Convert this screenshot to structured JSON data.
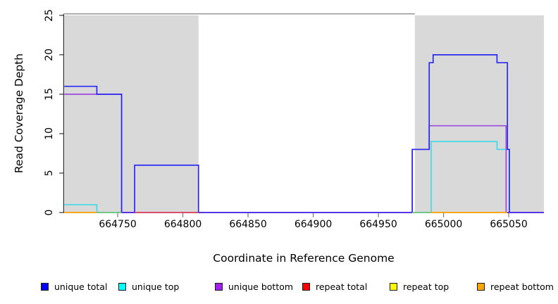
{
  "chart_data": {
    "type": "line",
    "subtype": "step-coverage-plot",
    "title": "",
    "xlabel": "Coordinate in Reference Genome",
    "ylabel": "Read Coverage Depth",
    "xlim": [
      664709,
      665077
    ],
    "ylim": [
      0,
      25
    ],
    "xticks": [
      664750,
      664800,
      664850,
      664900,
      664950,
      665000,
      665050
    ],
    "yticks": [
      0,
      5,
      10,
      15,
      20,
      25
    ],
    "grid": false,
    "legend_position": "bottom",
    "shaded_repeat_regions": [
      {
        "x0": 664709,
        "x1": 664812,
        "color": "#d9d9d9"
      },
      {
        "x0": 664978,
        "x1": 665077,
        "color": "#d9d9d9"
      }
    ],
    "top_boundary_line": {
      "y": 25,
      "x0": 664709,
      "x1": 664978,
      "color": "#8f8f8f"
    },
    "series": [
      {
        "name": "unique total",
        "line_color": "#2a2aef",
        "points": [
          [
            664709,
            16
          ],
          [
            664734,
            15
          ],
          [
            664753,
            0
          ],
          [
            664763,
            6
          ],
          [
            664812,
            0
          ],
          [
            664976,
            8
          ],
          [
            664989,
            19
          ],
          [
            664992,
            20
          ],
          [
            665041,
            19
          ],
          [
            665049,
            8
          ],
          [
            665050.5,
            0
          ],
          [
            665077,
            0
          ]
        ]
      },
      {
        "name": "unique top",
        "line_color": "#45d9e6",
        "points": [
          [
            664709,
            1
          ],
          [
            664734,
            0
          ],
          [
            664990.5,
            9
          ],
          [
            665041,
            8
          ],
          [
            665050.5,
            0
          ],
          [
            665077,
            0
          ]
        ]
      },
      {
        "name": "unique bottom",
        "line_color": "#a04ae6",
        "points": [
          [
            664709,
            15
          ],
          [
            664753,
            0
          ],
          [
            664976,
            8
          ],
          [
            664989,
            11
          ],
          [
            665048,
            0
          ],
          [
            665077,
            0
          ]
        ]
      },
      {
        "name": "repeat total",
        "line_color": "#e04a58",
        "points": [
          [
            664709,
            0
          ],
          [
            665077,
            0
          ]
        ]
      },
      {
        "name": "repeat top",
        "line_color": "#f0f030",
        "points": [
          [
            664709,
            0
          ],
          [
            665077,
            0
          ]
        ]
      },
      {
        "name": "repeat bottom",
        "line_color": "#ff9f00",
        "points": [
          [
            664709,
            0
          ],
          [
            665077,
            0
          ]
        ]
      }
    ],
    "zero_line_segments": [
      {
        "x0": 664709,
        "x1": 664734,
        "color": "#ff9f00"
      },
      {
        "x0": 664734,
        "x1": 664753,
        "color": "#74c57d"
      },
      {
        "x0": 664753,
        "x1": 664763,
        "color": "#5b33e8"
      },
      {
        "x0": 664763,
        "x1": 664812,
        "color": "#e04a58"
      },
      {
        "x0": 664812,
        "x1": 664976,
        "color": "#5b33e8"
      },
      {
        "x0": 664976,
        "x1": 664990,
        "color": "#74c57d"
      },
      {
        "x0": 664990,
        "x1": 665049,
        "color": "#ff9f00"
      },
      {
        "x0": 665049,
        "x1": 665077,
        "color": "#5b33e8"
      }
    ],
    "legend": [
      {
        "label": "unique total",
        "color": "#0000ff"
      },
      {
        "label": "unique top",
        "color": "#00ffff"
      },
      {
        "label": "unique bottom",
        "color": "#a020f0"
      },
      {
        "label": "repeat total",
        "color": "#ff0000"
      },
      {
        "label": "repeat top",
        "color": "#ffff00"
      },
      {
        "label": "repeat bottom",
        "color": "#ffa500"
      }
    ]
  }
}
